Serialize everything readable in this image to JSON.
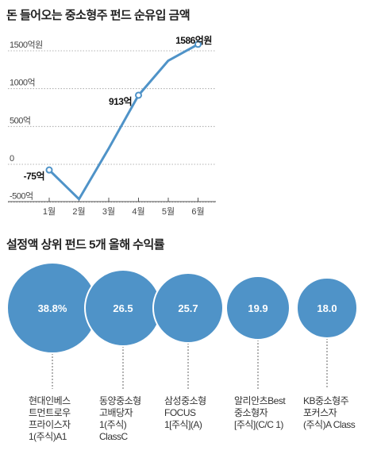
{
  "chart_data": [
    {
      "type": "line",
      "title": "돈 들어오는 중소형주 펀드 순유입 금액",
      "categories": [
        "1월",
        "2월",
        "3월",
        "4월",
        "5월",
        "6월"
      ],
      "yticks": [
        {
          "value": 1500,
          "label": "1500억원"
        },
        {
          "value": 1000,
          "label": "1000억"
        },
        {
          "value": 500,
          "label": "500억"
        },
        {
          "value": 0,
          "label": "0"
        },
        {
          "value": -500,
          "label": "-500억"
        }
      ],
      "ylim": [
        -560,
        1700
      ],
      "series": [
        {
          "values": [
            -75,
            -460,
            210,
            913,
            1370,
            1586
          ],
          "color": "#4f93c8"
        }
      ],
      "labels": [
        {
          "index": 0,
          "text": "-75억"
        },
        {
          "index": 3,
          "text": "913억"
        },
        {
          "index": 5,
          "text": "1586억원"
        }
      ]
    },
    {
      "type": "bubble",
      "title": "설정액 상위 펀드 5개 올해 수익률",
      "color": "#4f93c8",
      "items": [
        {
          "value": "38.8%",
          "label": [
            "현대인베스",
            "트먼트로우",
            "프라이스자",
            "1(주식)A1"
          ]
        },
        {
          "value": "26.5",
          "label": [
            "동양중소형",
            "고배당자",
            "1(주식)",
            "ClassC"
          ]
        },
        {
          "value": "25.7",
          "label": [
            "삼성중소형",
            "FOCUS",
            "1[주식](A)"
          ]
        },
        {
          "value": "19.9",
          "label": [
            "알리안츠Best",
            "중소형자",
            "[주식](C/C 1)"
          ]
        },
        {
          "value": "18.0",
          "label": [
            "KB중소형주",
            "포커스자",
            "(주식)A Class"
          ]
        }
      ]
    }
  ]
}
